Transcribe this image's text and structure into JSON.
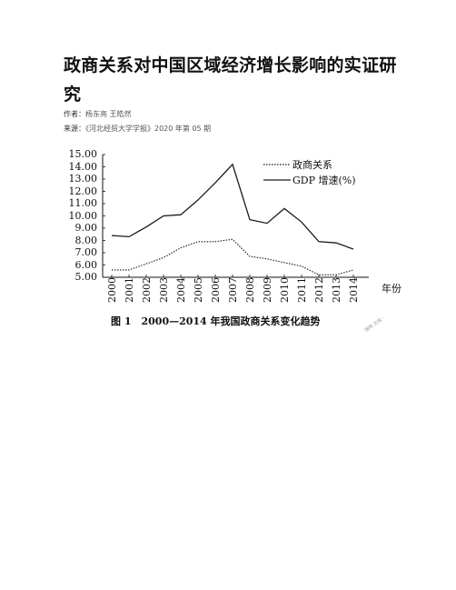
{
  "article": {
    "title": "政商关系对中国区域经济增长影响的实证研究",
    "author_label": "作者：",
    "authors": "杨东亮 王皓然",
    "source_label": "来源：",
    "source": "《河北经贸大学学报》2020 年第 05 期"
  },
  "figure": {
    "caption": "图 1　2000—2014 年我国政商关系变化趋势",
    "watermark": "搜狗 文库 ·"
  },
  "chart_data": {
    "type": "line",
    "x": [
      "2000",
      "2001",
      "2002",
      "2003",
      "2004",
      "2005",
      "2006",
      "2007",
      "2008",
      "2009",
      "2010",
      "2011",
      "2012",
      "2013",
      "2014"
    ],
    "xlabel": "年份",
    "ylabel": "",
    "ylim": [
      5.0,
      15.0
    ],
    "y_ticks": [
      "5.00",
      "6.00",
      "7.00",
      "8.00",
      "9.00",
      "10.00",
      "11.00",
      "12.00",
      "13.00",
      "14.00",
      "15.00"
    ],
    "legend_position": "top-right",
    "series": [
      {
        "name": "政商关系",
        "style": "dotted",
        "values": [
          5.6,
          5.6,
          6.1,
          6.6,
          7.4,
          7.9,
          7.9,
          8.1,
          6.7,
          6.5,
          6.2,
          5.9,
          5.2,
          5.2,
          5.6
        ]
      },
      {
        "name": "GDP 增速(%)",
        "style": "solid",
        "values": [
          8.4,
          8.3,
          9.1,
          10.0,
          10.1,
          11.3,
          12.7,
          14.2,
          9.7,
          9.4,
          10.6,
          9.5,
          7.9,
          7.8,
          7.3
        ]
      }
    ],
    "line_color": "#1a1a1a"
  }
}
